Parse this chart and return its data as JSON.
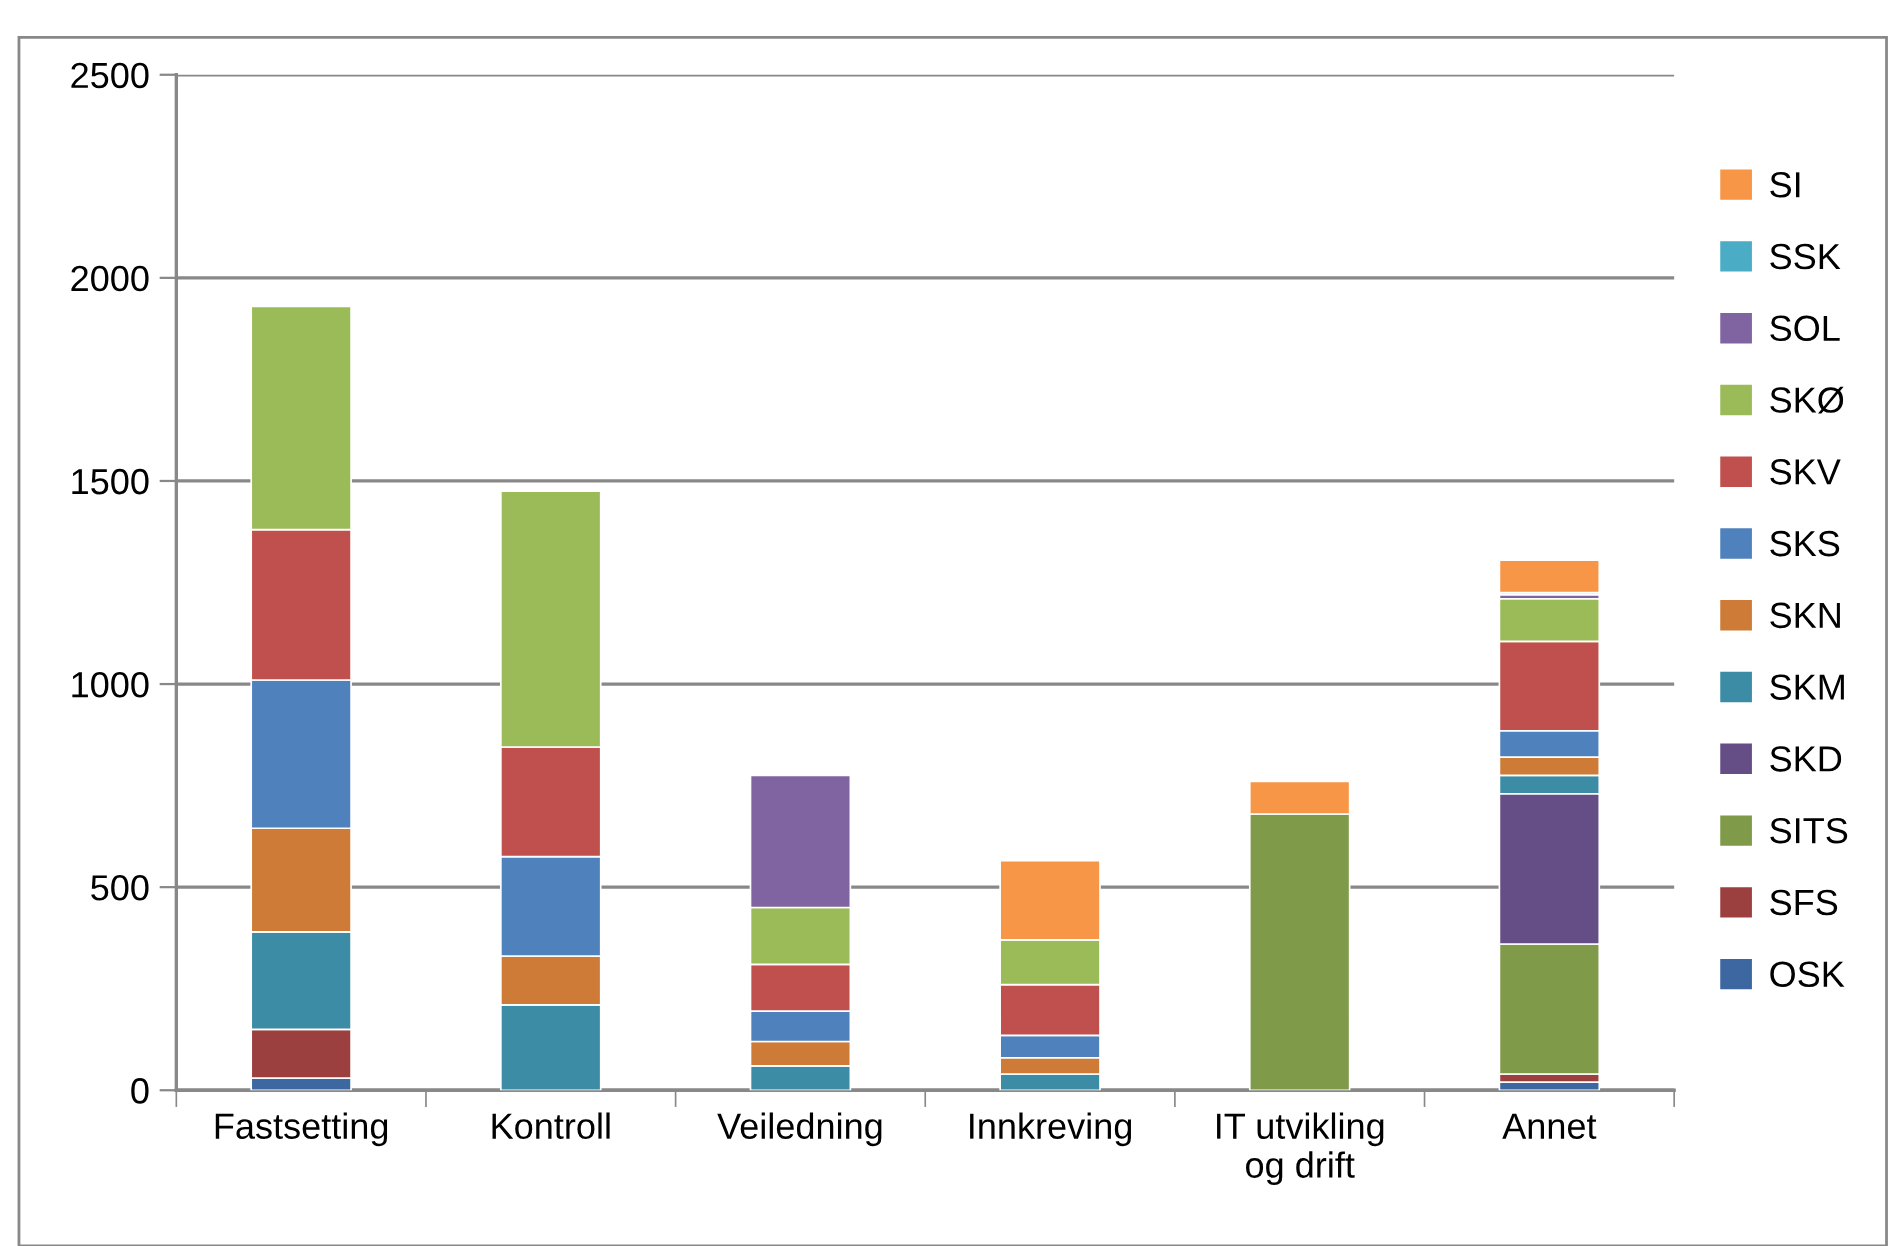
{
  "chart_data": {
    "type": "bar",
    "stacked": true,
    "categories": [
      "Fastsetting",
      "Kontroll",
      "Veiledning",
      "Innkreving",
      "IT utvikling\nog drift",
      "Annet"
    ],
    "series": [
      {
        "name": "OSK",
        "color": "#3c67a0",
        "values": [
          30,
          0,
          0,
          0,
          0,
          20
        ]
      },
      {
        "name": "SFS",
        "color": "#9c3f3f",
        "values": [
          120,
          0,
          0,
          0,
          0,
          20
        ]
      },
      {
        "name": "SITS",
        "color": "#7f9a48",
        "values": [
          0,
          0,
          0,
          0,
          680,
          320
        ]
      },
      {
        "name": "SKD",
        "color": "#654d86",
        "values": [
          0,
          0,
          0,
          0,
          0,
          370
        ]
      },
      {
        "name": "SKM",
        "color": "#3b8ca4",
        "values": [
          240,
          210,
          60,
          40,
          0,
          45
        ]
      },
      {
        "name": "SKN",
        "color": "#cd7b37",
        "values": [
          255,
          120,
          60,
          40,
          0,
          45
        ]
      },
      {
        "name": "SKS",
        "color": "#4f81bd",
        "values": [
          365,
          245,
          75,
          55,
          0,
          65
        ]
      },
      {
        "name": "SKV",
        "color": "#c0504d",
        "values": [
          370,
          270,
          115,
          125,
          0,
          220
        ]
      },
      {
        "name": "SKØ",
        "color": "#9bbb59",
        "values": [
          550,
          630,
          140,
          110,
          0,
          105
        ]
      },
      {
        "name": "SOL",
        "color": "#8064a2",
        "values": [
          0,
          0,
          325,
          0,
          0,
          10
        ]
      },
      {
        "name": "SSK",
        "color": "#4bacc6",
        "values": [
          0,
          0,
          0,
          0,
          0,
          5
        ]
      },
      {
        "name": "SI",
        "color": "#f79646",
        "values": [
          0,
          0,
          0,
          195,
          80,
          80
        ]
      }
    ],
    "ylim": [
      0,
      2500
    ],
    "yticks": [
      0,
      500,
      1000,
      1500,
      2000,
      2500
    ],
    "grid": "y",
    "legend": "right"
  }
}
